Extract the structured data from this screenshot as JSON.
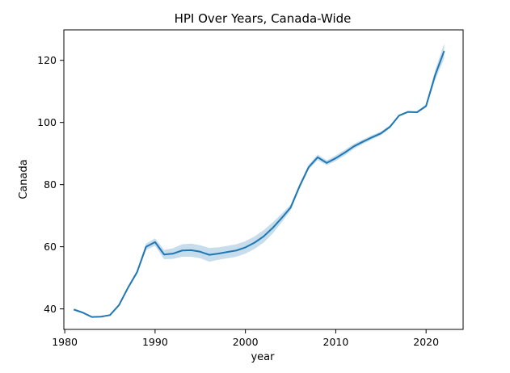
{
  "chart_data": {
    "type": "line",
    "title": "HPI Over Years, Canada-Wide",
    "xlabel": "year",
    "ylabel": "Canada",
    "xlim": [
      1979.9,
      2024.1
    ],
    "ylim": [
      33.4,
      129.8
    ],
    "xticks": [
      1980,
      1990,
      2000,
      2010,
      2020
    ],
    "yticks": [
      40,
      60,
      80,
      100,
      120
    ],
    "grid": false,
    "legend": "none",
    "line_color": "#1f77b4",
    "band_color": "#1f77b4",
    "series": [
      {
        "x": [
          1981,
          1982,
          1983,
          1984,
          1985,
          1986,
          1987,
          1988,
          1989,
          1990,
          1991,
          1992,
          1993,
          1994,
          1995,
          1996,
          1997,
          1998,
          1999,
          2000,
          2001,
          2002,
          2003,
          2004,
          2005,
          2006,
          2007,
          2008,
          2009,
          2010,
          2011,
          2012,
          2013,
          2014,
          2015,
          2016,
          2017,
          2018,
          2019,
          2020,
          2021,
          2022
        ],
        "values": [
          39.8,
          38.8,
          37.4,
          37.5,
          38.0,
          41.2,
          46.8,
          51.8,
          60.0,
          61.5,
          57.5,
          57.8,
          58.8,
          58.9,
          58.4,
          57.4,
          57.8,
          58.3,
          58.8,
          59.8,
          61.3,
          63.3,
          66.0,
          69.2,
          72.6,
          79.5,
          85.6,
          88.8,
          87.0,
          88.5,
          90.3,
          92.3,
          93.8,
          95.2,
          96.5,
          98.6,
          102.2,
          103.4,
          103.3,
          105.3,
          115.2,
          123.0
        ],
        "lower": [
          39.5,
          38.5,
          37.2,
          37.3,
          37.8,
          41.0,
          46.3,
          51.2,
          59.0,
          60.3,
          56.0,
          56.1,
          56.8,
          56.8,
          56.3,
          55.2,
          55.8,
          56.3,
          56.8,
          57.8,
          59.3,
          61.3,
          64.2,
          67.8,
          71.7,
          78.7,
          84.8,
          87.9,
          86.2,
          87.6,
          89.4,
          91.5,
          93.1,
          94.5,
          95.9,
          98.1,
          101.9,
          103.1,
          103.0,
          104.8,
          113.6,
          120.6
        ],
        "upper": [
          40.1,
          39.1,
          37.6,
          37.7,
          38.2,
          41.4,
          47.3,
          52.4,
          61.0,
          62.7,
          59.0,
          59.5,
          60.8,
          61.0,
          60.5,
          59.6,
          59.8,
          60.3,
          60.8,
          61.8,
          63.3,
          65.3,
          67.8,
          70.6,
          73.5,
          80.3,
          86.4,
          89.7,
          87.8,
          89.4,
          91.2,
          93.1,
          94.5,
          95.9,
          97.1,
          99.1,
          102.5,
          103.7,
          103.6,
          105.8,
          116.8,
          125.4
        ]
      }
    ]
  }
}
